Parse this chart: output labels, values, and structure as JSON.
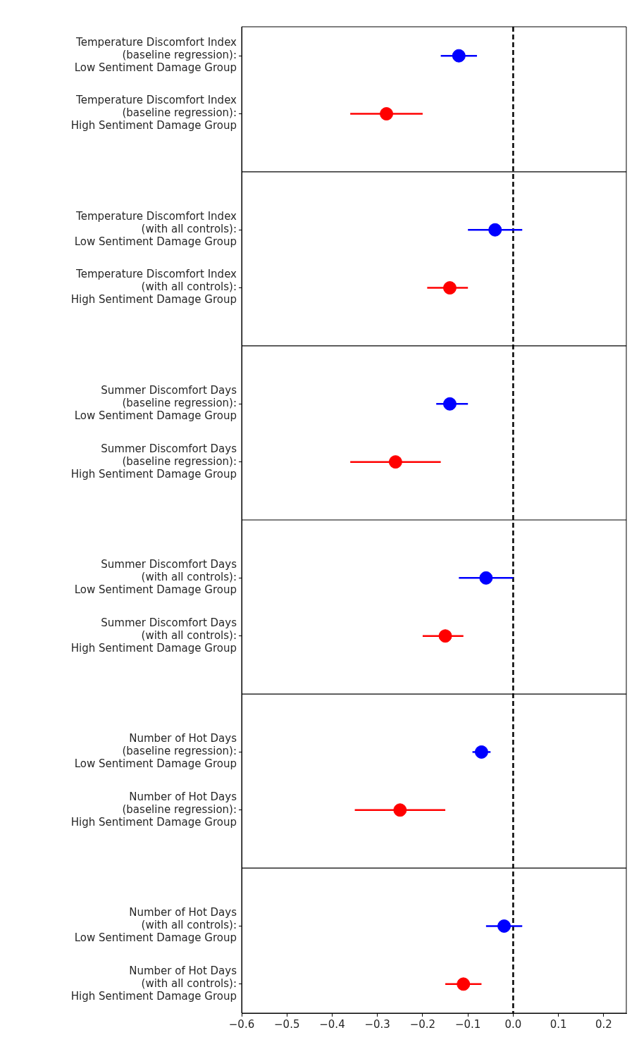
{
  "chart_data": {
    "type": "scatter",
    "orientation": "horizontal",
    "categories": [
      "Temperature Discomfort Index\n(baseline regression):\nLow Sentiment Damage Group",
      "Temperature Discomfort Index\n(baseline regression):\nHigh Sentiment Damage Group",
      null,
      "Temperature Discomfort Index\n(with all controls):\nLow Sentiment Damage Group",
      "Temperature Discomfort Index\n(with all controls):\nHigh Sentiment Damage Group",
      null,
      "Summer Discomfort Days\n(baseline regression):\nLow Sentiment Damage Group",
      "Summer Discomfort Days\n(baseline regression):\nHigh Sentiment Damage Group",
      null,
      "Summer Discomfort Days\n(with all controls):\nLow Sentiment Damage Group",
      "Summer Discomfort Days\n(with all controls):\nHigh Sentiment Damage Group",
      null,
      "Number of Hot Days\n(baseline regression):\nLow Sentiment Damage Group",
      "Number of Hot Days\n(baseline regression):\nHigh Sentiment Damage Group",
      null,
      "Number of Hot Days\n(with all controls):\nLow Sentiment Damage Group",
      "Number of Hot Days\n(with all controls):\nHigh Sentiment Damage Group"
    ],
    "values": [
      -0.12,
      -0.28,
      null,
      -0.04,
      -0.14,
      null,
      -0.14,
      -0.26,
      null,
      -0.06,
      -0.15,
      null,
      -0.07,
      -0.25,
      null,
      -0.02,
      -0.11
    ],
    "errors": [
      [
        -0.16,
        -0.08
      ],
      [
        -0.36,
        -0.2
      ],
      null,
      [
        -0.1,
        0.02
      ],
      [
        -0.19,
        -0.1
      ],
      null,
      [
        -0.17,
        -0.1
      ],
      [
        -0.36,
        -0.16
      ],
      null,
      [
        -0.12,
        0
      ],
      [
        -0.2,
        -0.11
      ],
      null,
      [
        -0.09,
        -0.05
      ],
      [
        -0.35,
        -0.15
      ],
      null,
      [
        -0.06,
        0.02
      ],
      [
        -0.15,
        -0.07
      ]
    ],
    "colors": [
      "#0000ff",
      "#ff0000",
      null,
      "#0000ff",
      "#ff0000",
      null,
      "#0000ff",
      "#ff0000",
      null,
      "#0000ff",
      "#ff0000",
      null,
      "#0000ff",
      "#ff0000",
      null,
      "#0000ff",
      "#ff0000"
    ],
    "marker": "circle",
    "grid": false,
    "xlim": [
      -0.6,
      0.25
    ],
    "xticks": [
      {
        "value": -0.6,
        "label": "−0.6"
      },
      {
        "value": -0.5,
        "label": "−0.5"
      },
      {
        "value": -0.4,
        "label": "−0.4"
      },
      {
        "value": -0.3,
        "label": "−0.3"
      },
      {
        "value": -0.2,
        "label": "−0.2"
      },
      {
        "value": -0.1,
        "label": "−0.1"
      },
      {
        "value": 0,
        "label": "0.0"
      },
      {
        "value": 0.1,
        "label": "0.1"
      },
      {
        "value": 0.2,
        "label": "0.2"
      }
    ],
    "ref_lines": [
      {
        "axis": "x",
        "value": 0,
        "color": "#000000",
        "line_style": "dashed"
      }
    ]
  }
}
